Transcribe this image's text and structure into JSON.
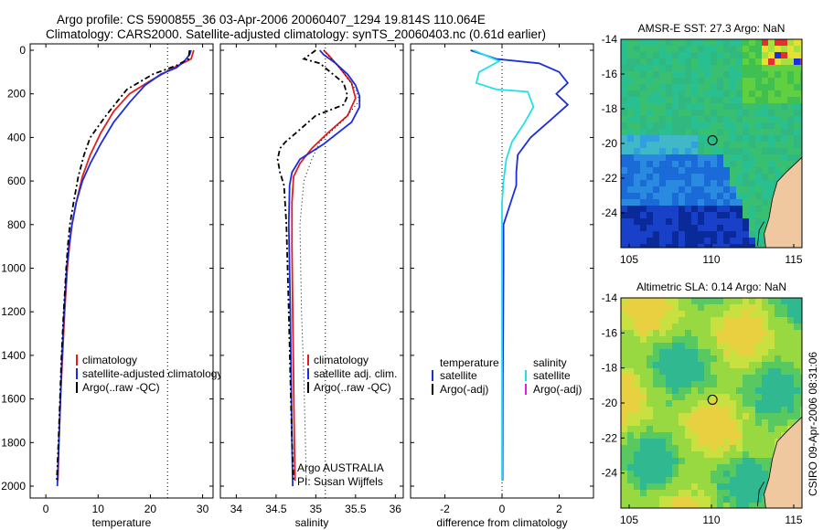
{
  "header": {
    "line1": "Argo profile: CS 5900855_36 03-Apr-2006 20060407_1294 19.814S 110.064E",
    "line2": "Climatology: CARS2000. Satellite-adjusted climatology: synTS_20060403.nc (0.61d earlier)"
  },
  "side_stamp": "CSIRO 09-Apr-2006 08:31:06",
  "colors": {
    "climatology": "#e02020",
    "satellite": "#1a2ee0",
    "argo": "#000000",
    "cyan": "#22e0e8",
    "magenta": "#e020e0"
  },
  "chart_data": [
    {
      "type": "line",
      "id": "temperature",
      "xlabel": "temperature",
      "xlim": [
        -3,
        32
      ],
      "ylim": [
        0,
        2050
      ],
      "yreversed": true,
      "xticks": [
        0,
        10,
        20,
        30
      ],
      "yticks": [
        0,
        200,
        400,
        600,
        800,
        1000,
        1200,
        1400,
        1600,
        1800,
        2000
      ],
      "reference_line": {
        "x": 23.3,
        "style": "dotted"
      },
      "legend": [
        {
          "label": "climatology",
          "color": "#e02020"
        },
        {
          "label": "satellite-adjusted climatology",
          "color": "#1a2ee0"
        },
        {
          "label": "Argo(..raw -QC)",
          "color": "#000000"
        }
      ],
      "series": [
        {
          "name": "climatology",
          "color": "#e02020",
          "dash": "",
          "points": [
            [
              28.3,
              0
            ],
            [
              27.8,
              40
            ],
            [
              24.5,
              80
            ],
            [
              20,
              140
            ],
            [
              16,
              200
            ],
            [
              13,
              280
            ],
            [
              10.5,
              380
            ],
            [
              8.5,
              480
            ],
            [
              7,
              580
            ],
            [
              5.8,
              700
            ],
            [
              5,
              800
            ],
            [
              4.5,
              900
            ],
            [
              4.1,
              1000
            ],
            [
              3.6,
              1200
            ],
            [
              3.2,
              1400
            ],
            [
              2.8,
              1600
            ],
            [
              2.5,
              1800
            ],
            [
              2.3,
              1975
            ]
          ]
        },
        {
          "name": "satellite-adjusted climatology",
          "color": "#1a2ee0",
          "dash": "",
          "points": [
            [
              27.8,
              0
            ],
            [
              27.5,
              20
            ],
            [
              26.5,
              50
            ],
            [
              25,
              80
            ],
            [
              22,
              110
            ],
            [
              19,
              160
            ],
            [
              16,
              240
            ],
            [
              13,
              330
            ],
            [
              10.5,
              430
            ],
            [
              8.5,
              520
            ],
            [
              7,
              600
            ],
            [
              5.8,
              700
            ],
            [
              5,
              800
            ],
            [
              4.4,
              900
            ],
            [
              4,
              1000
            ],
            [
              3.5,
              1200
            ],
            [
              3.1,
              1400
            ],
            [
              2.8,
              1600
            ],
            [
              2.5,
              1800
            ],
            [
              2.2,
              2000
            ]
          ]
        },
        {
          "name": "Argo(..raw -QC)",
          "color": "#000000",
          "dash": "6,3,2,3",
          "points": [
            [
              27.5,
              0
            ],
            [
              27.3,
              40
            ],
            [
              25,
              70
            ],
            [
              20.5,
              110
            ],
            [
              15.5,
              180
            ],
            [
              11.5,
              300
            ],
            [
              8.5,
              400
            ],
            [
              7.3,
              480
            ],
            [
              6.2,
              580
            ],
            [
              5.3,
              700
            ],
            [
              4.6,
              800
            ],
            [
              4.2,
              900
            ],
            [
              3.9,
              1000
            ],
            [
              3.4,
              1200
            ],
            [
              3,
              1400
            ],
            [
              2.7,
              1600
            ],
            [
              2.4,
              1800
            ],
            [
              2.1,
              1975
            ]
          ]
        }
      ]
    },
    {
      "type": "line",
      "id": "salinity",
      "xlabel": "salinity",
      "xlim": [
        33.8,
        36.1
      ],
      "ylim": [
        0,
        2050
      ],
      "yreversed": true,
      "xticks": [
        34,
        34.5,
        35,
        35.5,
        36
      ],
      "reference_line": {
        "x": 35.12,
        "style": "dotted"
      },
      "legend": [
        {
          "label": "climatology",
          "color": "#e02020"
        },
        {
          "label": "satellite adj. clim.",
          "color": "#1a2ee0"
        },
        {
          "label": "Argo(..raw -QC)",
          "color": "#000000"
        }
      ],
      "annotations": [
        "Argo AUSTRALIA",
        "PI: Susan Wijffels"
      ],
      "series": [
        {
          "name": "climatology",
          "color": "#e02020",
          "dash": "",
          "points": [
            [
              35.1,
              0
            ],
            [
              35.18,
              30
            ],
            [
              35.3,
              80
            ],
            [
              35.45,
              150
            ],
            [
              35.5,
              220
            ],
            [
              35.4,
              300
            ],
            [
              35.15,
              380
            ],
            [
              34.95,
              450
            ],
            [
              34.8,
              520
            ],
            [
              34.72,
              580
            ],
            [
              34.7,
              700
            ],
            [
              34.7,
              900
            ],
            [
              34.71,
              1200
            ],
            [
              34.72,
              1500
            ],
            [
              34.73,
              1800
            ],
            [
              34.74,
              1975
            ]
          ]
        },
        {
          "name": "satellite adj. clim.",
          "color": "#1a2ee0",
          "dash": "",
          "points": [
            [
              35.05,
              0
            ],
            [
              35.1,
              20
            ],
            [
              35.25,
              60
            ],
            [
              35.4,
              110
            ],
            [
              35.5,
              160
            ],
            [
              35.55,
              210
            ],
            [
              35.55,
              260
            ],
            [
              35.45,
              330
            ],
            [
              35.1,
              430
            ],
            [
              34.8,
              500
            ],
            [
              34.7,
              560
            ],
            [
              34.67,
              620
            ],
            [
              34.66,
              800
            ],
            [
              34.68,
              1200
            ],
            [
              34.69,
              1500
            ],
            [
              34.7,
              1800
            ],
            [
              34.71,
              2000
            ]
          ]
        },
        {
          "name": "Argo(..raw -QC)",
          "color": "#000000",
          "dash": "6,3,2,3",
          "points": [
            [
              35.0,
              0
            ],
            [
              34.85,
              40
            ],
            [
              35.05,
              60
            ],
            [
              35.15,
              90
            ],
            [
              35.35,
              150
            ],
            [
              35.4,
              210
            ],
            [
              35.35,
              250
            ],
            [
              35.0,
              300
            ],
            [
              34.75,
              380
            ],
            [
              34.62,
              420
            ],
            [
              34.55,
              450
            ],
            [
              34.52,
              500
            ],
            [
              34.55,
              560
            ],
            [
              34.6,
              620
            ],
            [
              34.63,
              800
            ],
            [
              34.66,
              1200
            ],
            [
              34.68,
              1500
            ],
            [
              34.7,
              1800
            ],
            [
              34.72,
              1975
            ]
          ]
        },
        {
          "name": "",
          "color": "#000000",
          "dash": "1,3",
          "points": [
            [
              35.1,
              0
            ],
            [
              35.3,
              80
            ],
            [
              35.5,
              180
            ],
            [
              35.55,
              230
            ],
            [
              35.35,
              320
            ],
            [
              35.05,
              420
            ],
            [
              34.95,
              500
            ],
            [
              34.85,
              600
            ],
            [
              34.8,
              800
            ],
            [
              34.82,
              1200
            ],
            [
              34.85,
              1500
            ],
            [
              34.87,
              1800
            ],
            [
              34.88,
              1975
            ]
          ]
        }
      ]
    },
    {
      "type": "line",
      "id": "difference",
      "xlabel": "difference from climatology",
      "xlim": [
        -3.2,
        3.2
      ],
      "ylim": [
        0,
        2050
      ],
      "yreversed": true,
      "xticks": [
        -2,
        0,
        2
      ],
      "reference_line": {
        "x": 0,
        "style": "dotted"
      },
      "legend_headers": [
        "temperature",
        "salinity"
      ],
      "legend": [
        {
          "label": "satellite",
          "color": "#1a2ee0"
        },
        {
          "label": "Argo(-adj)",
          "color": "#000000"
        },
        {
          "label": "satellite",
          "color": "#22e0e8"
        },
        {
          "label": "Argo(-adj)",
          "color": "#e020e0"
        }
      ],
      "series": [
        {
          "name": "temperature satellite",
          "color": "#1a2ee0",
          "dash": "",
          "points": [
            [
              -1.1,
              0
            ],
            [
              -0.2,
              40
            ],
            [
              1.3,
              60
            ],
            [
              2.0,
              100
            ],
            [
              2.3,
              150
            ],
            [
              1.9,
              200
            ],
            [
              2.3,
              250
            ],
            [
              1.7,
              320
            ],
            [
              1.0,
              400
            ],
            [
              0.55,
              480
            ],
            [
              0.5,
              560
            ],
            [
              0.5,
              620
            ],
            [
              0.3,
              700
            ],
            [
              0.05,
              800
            ],
            [
              0.05,
              900
            ],
            [
              0.05,
              1000
            ],
            [
              0.03,
              1500
            ],
            [
              0.02,
              1975
            ]
          ]
        },
        {
          "name": "salinity satellite",
          "color": "#22e0e8",
          "dash": "",
          "points": [
            [
              -1.0,
              0
            ],
            [
              -0.1,
              50
            ],
            [
              -0.8,
              100
            ],
            [
              -0.9,
              150
            ],
            [
              -0.2,
              180
            ],
            [
              0.9,
              190
            ],
            [
              1.1,
              260
            ],
            [
              0.8,
              330
            ],
            [
              0.35,
              420
            ],
            [
              0.15,
              500
            ],
            [
              0.05,
              600
            ],
            [
              0.0,
              700
            ],
            [
              0.0,
              1000
            ],
            [
              0.0,
              1500
            ],
            [
              0.0,
              1975
            ]
          ]
        }
      ]
    },
    {
      "type": "heatmap",
      "id": "sst",
      "title": "AMSR-E SST: 27.3 Argo: NaN",
      "xlim": [
        104.5,
        115.5
      ],
      "ylim": [
        -26,
        -14
      ],
      "xticks": [
        105,
        110,
        115
      ],
      "yticks": [
        -14,
        -16,
        -18,
        -20,
        -22,
        -24
      ],
      "marker": {
        "x": 110.064,
        "y": -19.814
      }
    },
    {
      "type": "heatmap",
      "id": "sla",
      "title": "Altimetric SLA: 0.14 Argo: NaN",
      "xlim": [
        104.5,
        115.5
      ],
      "ylim": [
        -26,
        -14
      ],
      "xticks": [
        105,
        110,
        115
      ],
      "yticks": [
        -14,
        -16,
        -18,
        -20,
        -22,
        -24
      ],
      "marker": {
        "x": 110.064,
        "y": -19.814
      }
    }
  ]
}
